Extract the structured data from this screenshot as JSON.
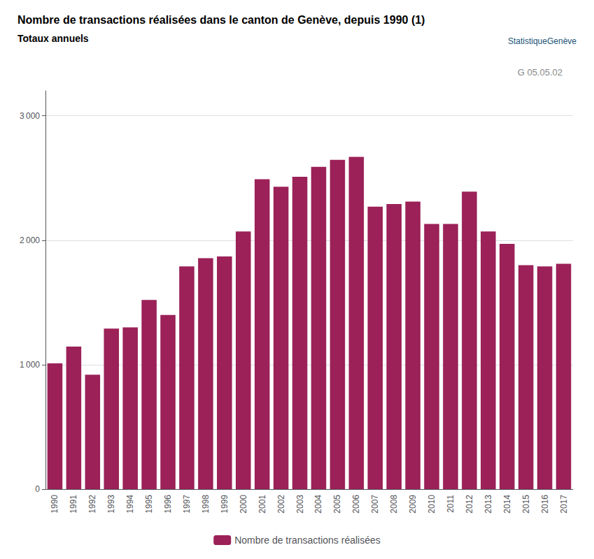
{
  "chart_data": {
    "type": "bar",
    "title": "Nombre de transactions réalisées dans le canton de Genève, depuis 1990 (1)",
    "subtitle": "Totaux annuels",
    "annotations": [
      "G 05.05.02",
      "StatistiqueGenève"
    ],
    "categories": [
      "1990",
      "1991",
      "1992",
      "1993",
      "1994",
      "1995",
      "1996",
      "1997",
      "1998",
      "1999",
      "2000",
      "2001",
      "2002",
      "2003",
      "2004",
      "2005",
      "2006",
      "2007",
      "2008",
      "2009",
      "2010",
      "2011",
      "2012",
      "2013",
      "2014",
      "2015",
      "2016",
      "2017"
    ],
    "series": [
      {
        "name": "Nombre de transactions réalisées",
        "color": "#9B2158",
        "values": [
          1010,
          1145,
          920,
          1290,
          1300,
          1520,
          1400,
          1790,
          1855,
          1870,
          2070,
          2490,
          2430,
          2510,
          2590,
          2645,
          2670,
          2270,
          2290,
          2310,
          2130,
          2130,
          2390,
          2070,
          1970,
          1800,
          1790,
          1810
        ]
      }
    ],
    "ylim": [
      0,
      3200
    ],
    "yticks": [
      0,
      {
        "value": 1000,
        "label": "1 000"
      },
      {
        "value": 2000,
        "label": "2 000"
      },
      {
        "value": 3000,
        "label": "3 000"
      }
    ],
    "grid": true,
    "legend": "bottom"
  }
}
